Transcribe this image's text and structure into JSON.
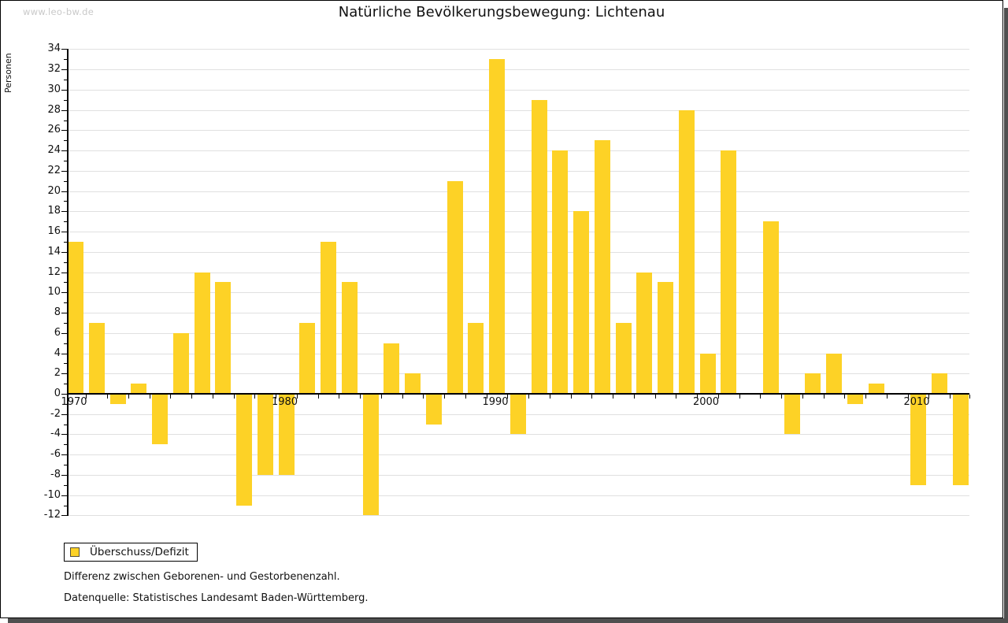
{
  "watermark": "www.leo-bw.de",
  "title": "Natürliche Bevölkerungsbewegung: Lichtenau",
  "legend": {
    "label": "Überschuss/Defizit",
    "swatch_color": "#fdd226"
  },
  "footnotes": [
    "Differenz zwischen Geborenen- und Gestorbenenzahl.",
    "Datenquelle: Statistisches Landesamt Baden-Württemberg."
  ],
  "colors": {
    "bar": "#fdd226",
    "gridline": "#e0e0e0",
    "axis": "#000000",
    "shadow": "#4f4f4f",
    "watermark": "#c9c9c9"
  },
  "chart_data": {
    "type": "bar",
    "title": "Natürliche Bevölkerungsbewegung: Lichtenau",
    "xlabel": "",
    "ylabel": "Personen",
    "ylim": [
      -12,
      34
    ],
    "ytick_step": 2,
    "grid": "horizontal",
    "legend_position": "bottom-left",
    "x_decade_labels": [
      1970,
      1980,
      1990,
      2000,
      2010
    ],
    "series": [
      {
        "name": "Überschuss/Defizit",
        "x": [
          1970,
          1971,
          1972,
          1973,
          1974,
          1975,
          1976,
          1977,
          1978,
          1979,
          1980,
          1981,
          1982,
          1983,
          1984,
          1985,
          1986,
          1987,
          1988,
          1989,
          1990,
          1991,
          1992,
          1993,
          1994,
          1995,
          1996,
          1997,
          1998,
          1999,
          2000,
          2001,
          2002,
          2003,
          2004,
          2005,
          2006,
          2007,
          2008,
          2009,
          2010,
          2011,
          2012
        ],
        "values": [
          15,
          7,
          -1,
          1,
          -5,
          6,
          12,
          11,
          -11,
          -8,
          -8,
          7,
          15,
          11,
          -12,
          5,
          2,
          -3,
          21,
          7,
          33,
          -4,
          29,
          24,
          18,
          25,
          7,
          12,
          11,
          28,
          4,
          24,
          0,
          17,
          -4,
          2,
          4,
          -1,
          1,
          0,
          -9,
          2,
          -9
        ]
      }
    ]
  }
}
